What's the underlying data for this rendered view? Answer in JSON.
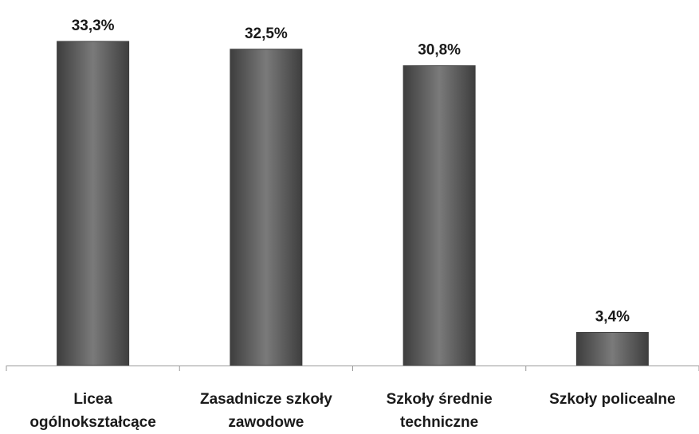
{
  "chart_data": {
    "type": "bar",
    "categories": [
      [
        "Licea",
        "ogólnokształcące"
      ],
      [
        "Zasadnicze szkoły",
        "zawodowe"
      ],
      [
        "Szkoły średnie",
        "techniczne"
      ],
      [
        "Szkoły policealne"
      ]
    ],
    "values": [
      33.3,
      32.5,
      30.8,
      3.4
    ],
    "data_labels": [
      "33,3%",
      "32,5%",
      "30,8%",
      "3,4%"
    ],
    "unit": "%",
    "ylim": [
      0,
      33.3
    ],
    "grid": false,
    "legend": "none",
    "title": "",
    "xlabel": "",
    "ylabel": "",
    "colors": {
      "bar": "#5a5a5a",
      "bar_light": "#7a7a7a",
      "bar_dark": "#3e3e3e",
      "axis": "#9a9a9a",
      "text": "#1a1a1a"
    }
  }
}
